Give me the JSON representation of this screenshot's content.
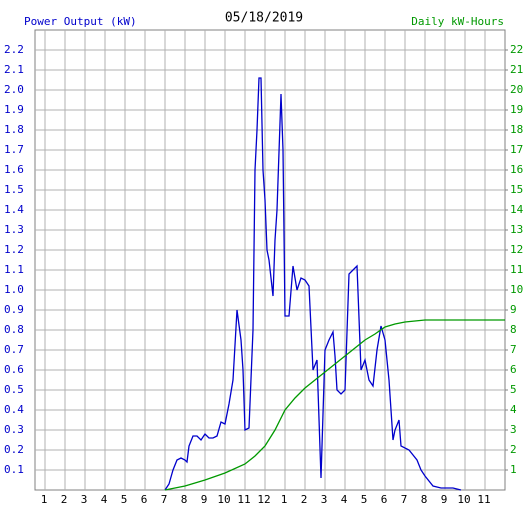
{
  "chart_data": {
    "type": "line",
    "title": "05/18/2019",
    "ylabel": "Power Output (kW)",
    "y2label": "Daily kW-Hours",
    "xlim": [
      0.5,
      24
    ],
    "ylim": [
      0,
      2.3
    ],
    "y2lim": [
      0,
      23
    ],
    "grid": true,
    "xticks": [
      1,
      2,
      3,
      4,
      5,
      6,
      7,
      8,
      9,
      10,
      11,
      12,
      {
        "value": 13,
        "label": "1"
      },
      {
        "value": 14,
        "label": "2"
      },
      {
        "value": 15,
        "label": "3"
      },
      {
        "value": 16,
        "label": "4"
      },
      {
        "value": 17,
        "label": "5"
      },
      {
        "value": 18,
        "label": "6"
      },
      {
        "value": 19,
        "label": "7"
      },
      {
        "value": 20,
        "label": "8"
      },
      {
        "value": 21,
        "label": "9"
      },
      {
        "value": 22,
        "label": "10"
      },
      {
        "value": 23,
        "label": "11"
      }
    ],
    "yticks": [
      0.1,
      0.2,
      0.3,
      0.4,
      0.5,
      0.6,
      0.7,
      0.8,
      0.9,
      {
        "value": 1,
        "label": "1.0"
      },
      1.1,
      1.2,
      1.3,
      1.4,
      1.5,
      1.6,
      1.7,
      1.8,
      1.9,
      {
        "value": 2,
        "label": "2.0"
      },
      2.1,
      2.2
    ],
    "y2ticks": [
      1,
      2,
      3,
      4,
      5,
      6,
      7,
      8,
      9,
      10,
      11,
      12,
      13,
      14,
      15,
      16,
      17,
      18,
      19,
      20,
      21,
      22
    ],
    "series": [
      {
        "color": "#0000cc",
        "axis": "y",
        "x": [
          7.0,
          7.2,
          7.4,
          7.6,
          7.8,
          8.0,
          8.1,
          8.2,
          8.4,
          8.6,
          8.8,
          9.0,
          9.2,
          9.4,
          9.6,
          9.8,
          10.0,
          10.2,
          10.4,
          10.6,
          10.8,
          10.9,
          11.0,
          11.2,
          11.4,
          11.5,
          11.6,
          11.7,
          11.8,
          11.9,
          12.0,
          12.1,
          12.2,
          12.4,
          12.5,
          12.6,
          12.8,
          12.9,
          13.0,
          13.2,
          13.4,
          13.6,
          13.8,
          14.0,
          14.2,
          14.4,
          14.6,
          14.8,
          15.0,
          15.2,
          15.4,
          15.5,
          15.6,
          15.8,
          16.0,
          16.2,
          16.4,
          16.6,
          16.8,
          17.0,
          17.2,
          17.4,
          17.6,
          17.8,
          18.0,
          18.2,
          18.4,
          18.5,
          18.7,
          18.8,
          19.2,
          19.6,
          19.8,
          20.0,
          20.4,
          20.8,
          21.4,
          21.8
        ],
        "values": [
          0,
          0.03,
          0.1,
          0.15,
          0.16,
          0.15,
          0.14,
          0.22,
          0.27,
          0.27,
          0.25,
          0.28,
          0.26,
          0.26,
          0.27,
          0.34,
          0.33,
          0.43,
          0.55,
          0.9,
          0.75,
          0.6,
          0.3,
          0.31,
          0.8,
          1.6,
          1.8,
          2.06,
          2.06,
          1.6,
          1.45,
          1.2,
          1.15,
          0.97,
          1.25,
          1.4,
          1.98,
          1.7,
          0.87,
          0.87,
          1.12,
          1.0,
          1.06,
          1.05,
          1.02,
          0.6,
          0.65,
          0.06,
          0.7,
          0.75,
          0.79,
          0.67,
          0.5,
          0.48,
          0.5,
          1.08,
          1.1,
          1.12,
          0.6,
          0.65,
          0.55,
          0.52,
          0.7,
          0.82,
          0.75,
          0.55,
          0.25,
          0.3,
          0.35,
          0.22,
          0.2,
          0.15,
          0.1,
          0.07,
          0.02,
          0.01,
          0.01,
          0
        ]
      },
      {
        "color": "#009900",
        "axis": "y2",
        "x": [
          7,
          8,
          9,
          10,
          11,
          11.5,
          12,
          12.5,
          13,
          13.5,
          14,
          14.5,
          15,
          15.5,
          16,
          16.5,
          17,
          17.5,
          18,
          18.5,
          19,
          19.5,
          20,
          24
        ],
        "values": [
          0,
          0.2,
          0.5,
          0.85,
          1.3,
          1.7,
          2.2,
          3.0,
          4.0,
          4.6,
          5.1,
          5.5,
          5.9,
          6.3,
          6.7,
          7.1,
          7.5,
          7.8,
          8.15,
          8.3,
          8.4,
          8.45,
          8.5,
          8.5
        ]
      }
    ]
  }
}
